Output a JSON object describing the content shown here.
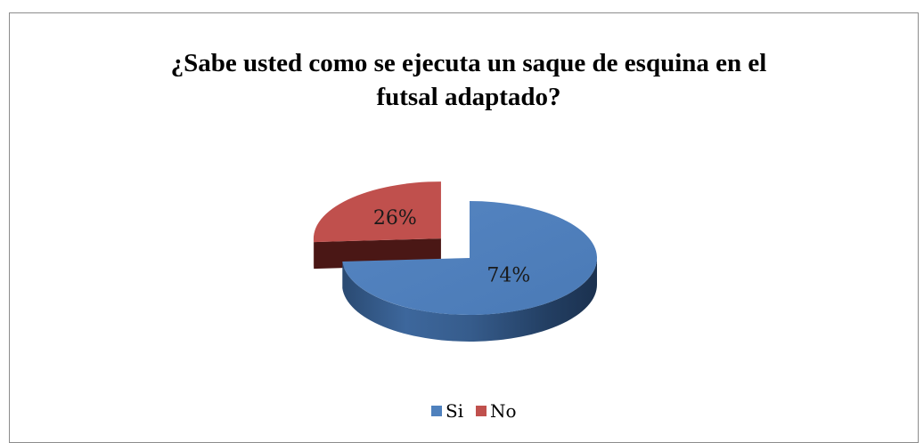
{
  "chart_data": {
    "type": "pie",
    "title": "¿Sabe usted como se ejecuta un saque de esquina en el futsal adaptado?",
    "title_lines": [
      "¿Sabe usted como se ejecuta un saque de esquina en el",
      "futsal adaptado?"
    ],
    "style": "3d-exploded",
    "categories": [
      "Si",
      "No"
    ],
    "values": [
      74,
      26
    ],
    "data_labels": [
      "74%",
      "26%"
    ],
    "colors": [
      "#4f81bd",
      "#c0504d"
    ],
    "exploded": [
      false,
      true
    ],
    "legend": {
      "position": "bottom",
      "entries": [
        "Si",
        "No"
      ]
    }
  }
}
